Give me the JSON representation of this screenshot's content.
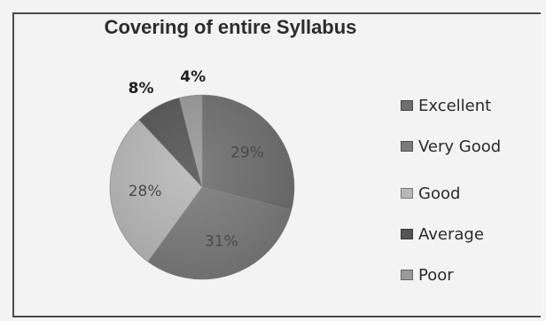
{
  "chart_data": {
    "type": "pie",
    "title": "Covering of entire Syllabus",
    "categories": [
      "Excellent",
      "Very Good",
      "Good",
      "Average",
      "Poor"
    ],
    "values": [
      29,
      31,
      28,
      8,
      4
    ],
    "data_labels": [
      "29%",
      "31%",
      "28%",
      "8%",
      "4%"
    ],
    "colors": [
      "#6f6f6f",
      "#7b7b7b",
      "#b9b9b9",
      "#555555",
      "#9a9a9a"
    ],
    "legend_position": "right",
    "start_direction": "top",
    "direction": "clockwise"
  }
}
